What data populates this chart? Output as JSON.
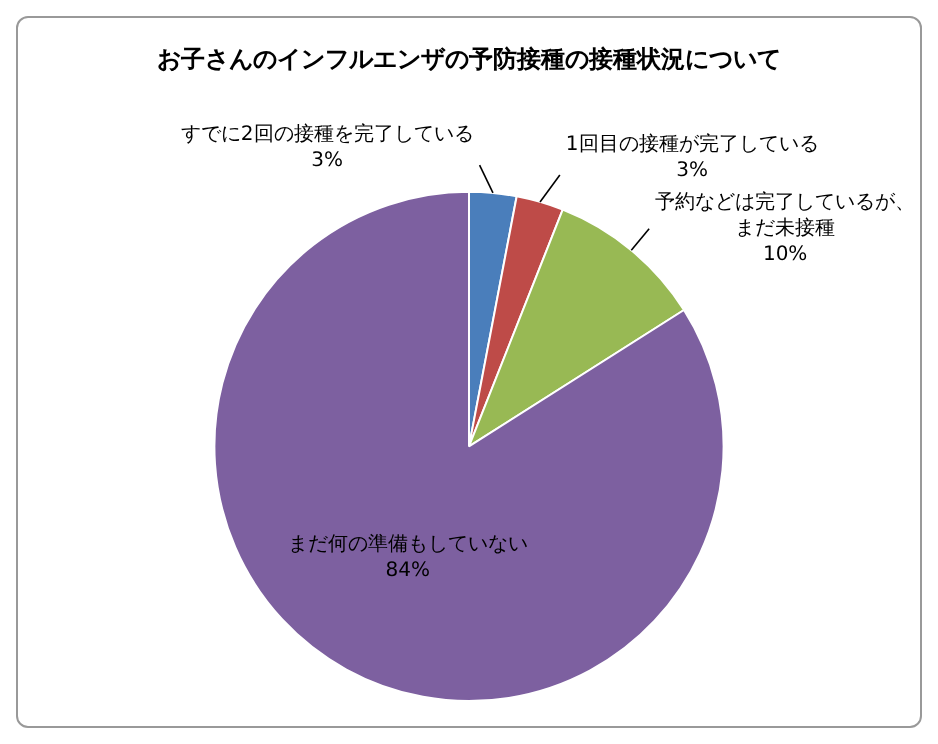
{
  "chart_data": {
    "type": "pie",
    "title": "お子さんのインフルエンザの予防接種の接種状況について",
    "categories": [
      "すでに2回の接種を完了している",
      "1回目の接種が完了している",
      "予約などは完了しているが、まだ未接種",
      "まだ何の準備もしていない"
    ],
    "values": [
      3,
      3,
      10,
      84
    ],
    "value_labels": [
      "3%",
      "3%",
      "10%",
      "84%"
    ],
    "colors": [
      "#4a7ebb",
      "#be4b48",
      "#98b954",
      "#7d60a0"
    ],
    "legend": false
  }
}
